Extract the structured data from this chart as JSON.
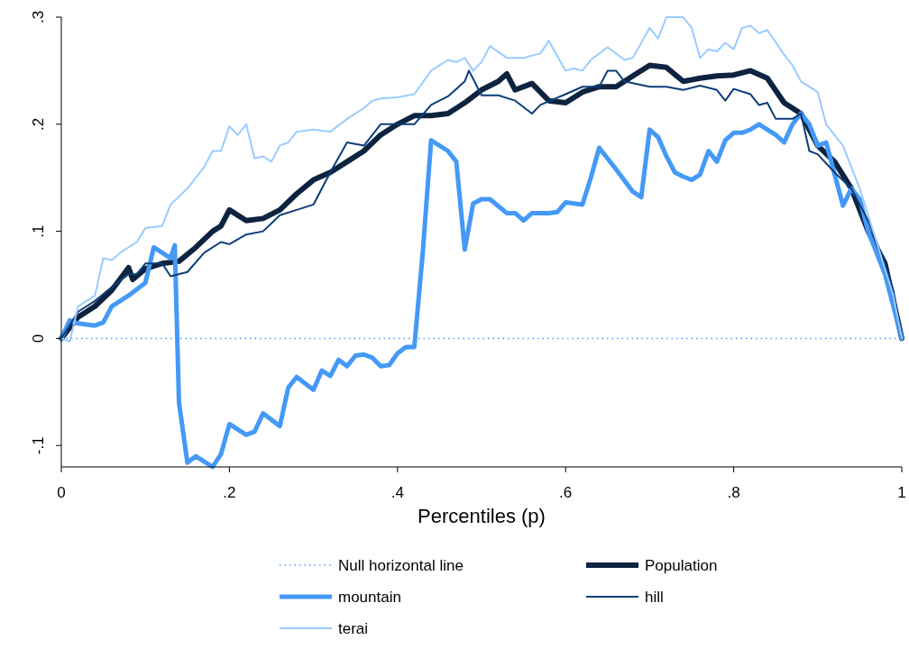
{
  "chart_data": {
    "type": "line",
    "xlabel": "Percentiles (p)",
    "xlim": [
      0,
      1
    ],
    "ylim": [
      -0.12,
      0.3
    ],
    "xticks": [
      0,
      {
        "value": 0.2,
        "label": ".2"
      },
      {
        "value": 0.4,
        "label": ".4"
      },
      {
        "value": 0.6,
        "label": ".6"
      },
      {
        "value": 0.8,
        "label": ".8"
      },
      1
    ],
    "yticks": [
      {
        "value": -0.1,
        "label": "-.1"
      },
      0,
      {
        "value": 0.1,
        "label": ".1"
      },
      {
        "value": 0.2,
        "label": ".2"
      },
      {
        "value": 0.3,
        "label": ".3"
      }
    ],
    "grid": false,
    "legend": "bottom",
    "series": [
      {
        "name": "Null horizontal line",
        "color": "#4a9df8",
        "line_style": "dotted",
        "x": [
          0,
          1
        ],
        "values": [
          0,
          0
        ]
      },
      {
        "name": "Population",
        "color": "#0d2340",
        "line_style": "solid",
        "x": [
          0,
          0.02,
          0.04,
          0.06,
          0.08,
          0.085,
          0.1,
          0.12,
          0.14,
          0.16,
          0.18,
          0.19,
          0.2,
          0.22,
          0.24,
          0.26,
          0.28,
          0.3,
          0.32,
          0.34,
          0.36,
          0.38,
          0.4,
          0.42,
          0.44,
          0.46,
          0.48,
          0.5,
          0.52,
          0.53,
          0.54,
          0.56,
          0.58,
          0.6,
          0.62,
          0.64,
          0.66,
          0.68,
          0.7,
          0.72,
          0.74,
          0.76,
          0.78,
          0.8,
          0.82,
          0.84,
          0.86,
          0.88,
          0.9,
          0.92,
          0.94,
          0.96,
          0.98,
          1
        ],
        "values": [
          0,
          0.02,
          0.03,
          0.045,
          0.066,
          0.055,
          0.065,
          0.07,
          0.072,
          0.085,
          0.1,
          0.105,
          0.12,
          0.11,
          0.112,
          0.12,
          0.135,
          0.148,
          0.155,
          0.165,
          0.175,
          0.19,
          0.2,
          0.208,
          0.208,
          0.21,
          0.22,
          0.232,
          0.24,
          0.247,
          0.232,
          0.238,
          0.222,
          0.22,
          0.23,
          0.235,
          0.235,
          0.245,
          0.255,
          0.253,
          0.24,
          0.243,
          0.245,
          0.246,
          0.25,
          0.243,
          0.22,
          0.21,
          0.18,
          0.165,
          0.14,
          0.1,
          0.07,
          0
        ]
      },
      {
        "name": "mountain",
        "color": "#4499f7",
        "line_style": "solid",
        "x": [
          0,
          0.01,
          0.02,
          0.04,
          0.05,
          0.06,
          0.08,
          0.1,
          0.11,
          0.13,
          0.135,
          0.14,
          0.15,
          0.16,
          0.18,
          0.19,
          0.2,
          0.22,
          0.23,
          0.24,
          0.26,
          0.27,
          0.28,
          0.3,
          0.31,
          0.32,
          0.33,
          0.34,
          0.35,
          0.36,
          0.37,
          0.38,
          0.39,
          0.4,
          0.41,
          0.42,
          0.43,
          0.44,
          0.46,
          0.47,
          0.48,
          0.49,
          0.5,
          0.51,
          0.53,
          0.54,
          0.55,
          0.56,
          0.58,
          0.59,
          0.6,
          0.62,
          0.63,
          0.64,
          0.66,
          0.68,
          0.69,
          0.7,
          0.71,
          0.72,
          0.73,
          0.74,
          0.75,
          0.76,
          0.77,
          0.78,
          0.79,
          0.8,
          0.81,
          0.82,
          0.83,
          0.85,
          0.86,
          0.87,
          0.88,
          0.89,
          0.9,
          0.91,
          0.93,
          0.94,
          0.95,
          0.96,
          0.98,
          1
        ],
        "values": [
          0,
          0.017,
          0.014,
          0.012,
          0.015,
          0.03,
          0.04,
          0.052,
          0.085,
          0.075,
          0.087,
          -0.06,
          -0.116,
          -0.11,
          -0.12,
          -0.108,
          -0.08,
          -0.09,
          -0.087,
          -0.07,
          -0.082,
          -0.046,
          -0.036,
          -0.048,
          -0.03,
          -0.035,
          -0.02,
          -0.026,
          -0.016,
          -0.015,
          -0.018,
          -0.026,
          -0.025,
          -0.014,
          -0.008,
          -0.008,
          0.08,
          0.185,
          0.175,
          0.165,
          0.083,
          0.126,
          0.13,
          0.13,
          0.117,
          0.117,
          0.11,
          0.117,
          0.117,
          0.118,
          0.127,
          0.125,
          0.15,
          0.178,
          0.158,
          0.137,
          0.132,
          0.195,
          0.188,
          0.17,
          0.155,
          0.151,
          0.148,
          0.153,
          0.175,
          0.165,
          0.185,
          0.192,
          0.192,
          0.195,
          0.2,
          0.19,
          0.183,
          0.2,
          0.21,
          0.2,
          0.18,
          0.183,
          0.124,
          0.14,
          0.13,
          0.1,
          0.06,
          0
        ]
      },
      {
        "name": "hill",
        "color": "#0b3d7a",
        "line_style": "solid",
        "x": [
          0,
          0.02,
          0.04,
          0.06,
          0.08,
          0.09,
          0.1,
          0.12,
          0.13,
          0.15,
          0.17,
          0.19,
          0.2,
          0.22,
          0.24,
          0.26,
          0.28,
          0.3,
          0.32,
          0.34,
          0.36,
          0.38,
          0.4,
          0.42,
          0.44,
          0.46,
          0.48,
          0.485,
          0.5,
          0.52,
          0.54,
          0.56,
          0.57,
          0.6,
          0.62,
          0.64,
          0.65,
          0.66,
          0.67,
          0.7,
          0.72,
          0.74,
          0.76,
          0.78,
          0.79,
          0.8,
          0.82,
          0.83,
          0.84,
          0.85,
          0.87,
          0.88,
          0.89,
          0.9,
          0.92,
          0.94,
          0.96,
          0.98,
          0.99,
          1
        ],
        "values": [
          0,
          0.025,
          0.035,
          0.048,
          0.06,
          0.06,
          0.07,
          0.07,
          0.058,
          0.062,
          0.08,
          0.09,
          0.088,
          0.097,
          0.1,
          0.115,
          0.12,
          0.125,
          0.155,
          0.183,
          0.18,
          0.2,
          0.2,
          0.2,
          0.218,
          0.226,
          0.24,
          0.25,
          0.227,
          0.227,
          0.222,
          0.21,
          0.218,
          0.228,
          0.235,
          0.235,
          0.25,
          0.25,
          0.24,
          0.235,
          0.235,
          0.232,
          0.236,
          0.232,
          0.222,
          0.233,
          0.228,
          0.218,
          0.22,
          0.205,
          0.205,
          0.21,
          0.175,
          0.172,
          0.155,
          0.14,
          0.11,
          0.07,
          0.045,
          0
        ]
      },
      {
        "name": "terai",
        "color": "#99ccff",
        "line_style": "solid",
        "x": [
          0,
          0.01,
          0.02,
          0.04,
          0.05,
          0.06,
          0.07,
          0.09,
          0.1,
          0.12,
          0.13,
          0.15,
          0.17,
          0.18,
          0.19,
          0.2,
          0.21,
          0.22,
          0.23,
          0.24,
          0.25,
          0.26,
          0.27,
          0.28,
          0.3,
          0.32,
          0.34,
          0.36,
          0.37,
          0.38,
          0.4,
          0.42,
          0.44,
          0.46,
          0.47,
          0.48,
          0.49,
          0.5,
          0.51,
          0.53,
          0.55,
          0.57,
          0.58,
          0.6,
          0.61,
          0.62,
          0.63,
          0.65,
          0.67,
          0.68,
          0.7,
          0.71,
          0.72,
          0.74,
          0.75,
          0.76,
          0.77,
          0.78,
          0.79,
          0.8,
          0.81,
          0.82,
          0.83,
          0.84,
          0.86,
          0.87,
          0.88,
          0.9,
          0.91,
          0.93,
          0.95,
          0.97,
          0.99,
          1
        ],
        "values": [
          0,
          -0.003,
          0.03,
          0.04,
          0.075,
          0.073,
          0.08,
          0.09,
          0.103,
          0.105,
          0.125,
          0.14,
          0.16,
          0.175,
          0.175,
          0.198,
          0.19,
          0.2,
          0.168,
          0.17,
          0.165,
          0.18,
          0.183,
          0.193,
          0.195,
          0.193,
          0.205,
          0.215,
          0.222,
          0.224,
          0.225,
          0.228,
          0.25,
          0.26,
          0.258,
          0.262,
          0.25,
          0.258,
          0.273,
          0.262,
          0.262,
          0.266,
          0.278,
          0.25,
          0.252,
          0.25,
          0.26,
          0.272,
          0.26,
          0.262,
          0.29,
          0.28,
          0.3,
          0.3,
          0.29,
          0.262,
          0.27,
          0.268,
          0.276,
          0.27,
          0.29,
          0.292,
          0.285,
          0.288,
          0.265,
          0.255,
          0.24,
          0.23,
          0.2,
          0.18,
          0.14,
          0.09,
          0.04,
          0
        ]
      }
    ]
  }
}
